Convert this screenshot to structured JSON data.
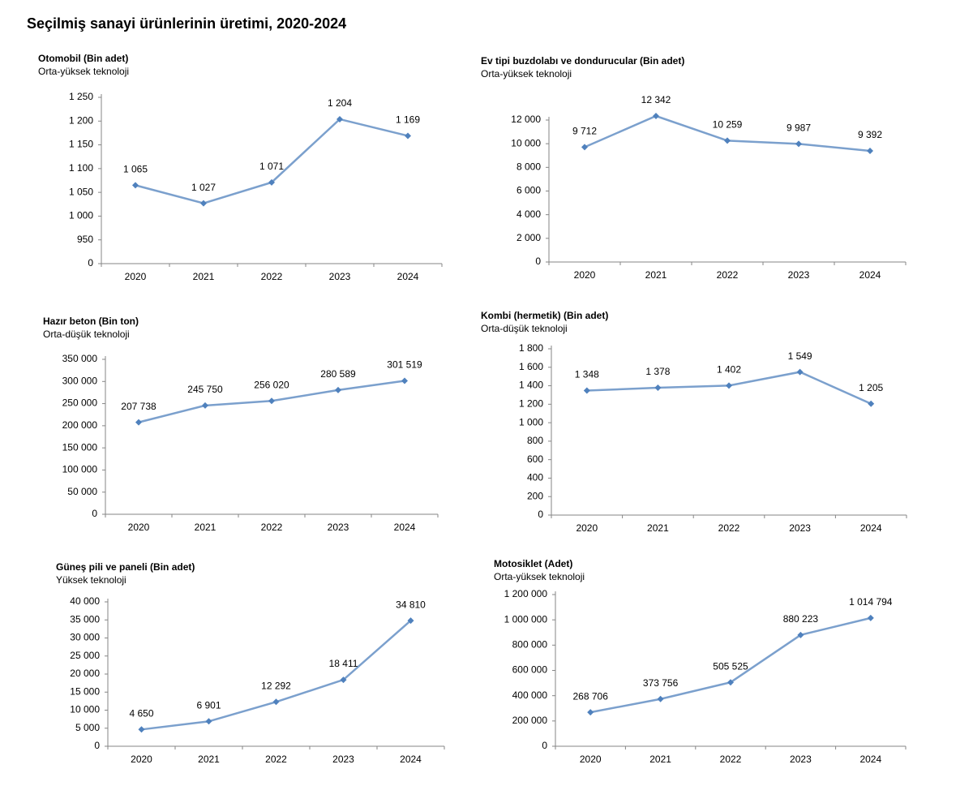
{
  "title": "Seçilmiş sanayi ürünlerinin üretimi, 2020-2024",
  "chart_data": [
    {
      "type": "line",
      "title": "Otomobil (Bin adet)",
      "subtitle": "Orta-yüksek teknoloji",
      "categories": [
        "2020",
        "2021",
        "2022",
        "2023",
        "2024"
      ],
      "values": [
        1065,
        1027,
        1071,
        1204,
        1169
      ],
      "value_labels": [
        "1 065",
        "1 027",
        "1 071",
        "1 204",
        "1 169"
      ],
      "color": "#7ba0cd",
      "marker_color": "#4f81bd",
      "ylim": [
        900,
        1250
      ],
      "yticks": [
        {
          "value": 900,
          "label": "0"
        },
        950,
        {
          "value": 1000,
          "label": "1 000"
        },
        {
          "value": 1050,
          "label": "1 050"
        },
        {
          "value": 1100,
          "label": "1 100"
        },
        {
          "value": 1150,
          "label": "1 150"
        },
        {
          "value": 1200,
          "label": "1 200"
        },
        {
          "value": 1250,
          "label": "1 250"
        }
      ]
    },
    {
      "type": "line",
      "title": "Ev tipi buzdolabı ve dondurucular (Bin adet)",
      "subtitle": "Orta-yüksek teknoloji",
      "categories": [
        "2020",
        "2021",
        "2022",
        "2023",
        "2024"
      ],
      "values": [
        9712,
        12342,
        10259,
        9987,
        9392
      ],
      "value_labels": [
        "9 712",
        "12 342",
        "10 259",
        "9 987",
        "9 392"
      ],
      "color": "#7ba0cd",
      "marker_color": "#4f81bd",
      "ylim": [
        0,
        12000
      ],
      "yticks": [
        0,
        {
          "value": 2000,
          "label": "2 000"
        },
        {
          "value": 4000,
          "label": "4 000"
        },
        {
          "value": 6000,
          "label": "6 000"
        },
        {
          "value": 8000,
          "label": "8 000"
        },
        {
          "value": 10000,
          "label": "10 000"
        },
        {
          "value": 12000,
          "label": "12 000"
        }
      ]
    },
    {
      "type": "line",
      "title": "Hazır beton (Bin ton)",
      "subtitle": "Orta-düşük teknoloji",
      "categories": [
        "2020",
        "2021",
        "2022",
        "2023",
        "2024"
      ],
      "values": [
        207738,
        245750,
        256020,
        280589,
        301519
      ],
      "value_labels": [
        "207 738",
        "245 750",
        "256 020",
        "280 589",
        "301 519"
      ],
      "color": "#7ba0cd",
      "marker_color": "#4f81bd",
      "ylim": [
        0,
        350000
      ],
      "yticks": [
        0,
        {
          "value": 50000,
          "label": "50 000"
        },
        {
          "value": 100000,
          "label": "100 000"
        },
        {
          "value": 150000,
          "label": "150 000"
        },
        {
          "value": 200000,
          "label": "200 000"
        },
        {
          "value": 250000,
          "label": "250 000"
        },
        {
          "value": 300000,
          "label": "300 000"
        },
        {
          "value": 350000,
          "label": "350 000"
        }
      ]
    },
    {
      "type": "line",
      "title": "Kombi (hermetik) (Bin adet)",
      "subtitle": "Orta-düşük teknoloji",
      "categories": [
        "2020",
        "2021",
        "2022",
        "2023",
        "2024"
      ],
      "values": [
        1348,
        1378,
        1402,
        1549,
        1205
      ],
      "value_labels": [
        "1 348",
        "1 378",
        "1 402",
        "1 549",
        "1 205"
      ],
      "color": "#7ba0cd",
      "marker_color": "#4f81bd",
      "ylim": [
        0,
        1800
      ],
      "yticks": [
        0,
        200,
        400,
        600,
        800,
        {
          "value": 1000,
          "label": "1 000"
        },
        {
          "value": 1200,
          "label": "1 200"
        },
        {
          "value": 1400,
          "label": "1 400"
        },
        {
          "value": 1600,
          "label": "1 600"
        },
        {
          "value": 1800,
          "label": "1 800"
        }
      ]
    },
    {
      "type": "line",
      "title": "Güneş pili ve paneli (Bin adet)",
      "subtitle": "Yüksek teknoloji",
      "categories": [
        "2020",
        "2021",
        "2022",
        "2023",
        "2024"
      ],
      "values": [
        4650,
        6901,
        12292,
        18411,
        34810
      ],
      "value_labels": [
        "4 650",
        "6 901",
        "12 292",
        "18 411",
        "34 810"
      ],
      "color": "#7ba0cd",
      "marker_color": "#4f81bd",
      "ylim": [
        0,
        40000
      ],
      "yticks": [
        0,
        {
          "value": 5000,
          "label": "5 000"
        },
        {
          "value": 10000,
          "label": "10 000"
        },
        {
          "value": 15000,
          "label": "15 000"
        },
        {
          "value": 20000,
          "label": "20 000"
        },
        {
          "value": 25000,
          "label": "25 000"
        },
        {
          "value": 30000,
          "label": "30 000"
        },
        {
          "value": 35000,
          "label": "35 000"
        },
        {
          "value": 40000,
          "label": "40 000"
        }
      ]
    },
    {
      "type": "line",
      "title": "Motosiklet (Adet)",
      "subtitle": "Orta-yüksek teknoloji",
      "categories": [
        "2020",
        "2021",
        "2022",
        "2023",
        "2024"
      ],
      "values": [
        268706,
        373756,
        505525,
        880223,
        1014794
      ],
      "value_labels": [
        "268 706",
        "373 756",
        "505 525",
        "880 223",
        "1 014 794"
      ],
      "color": "#7ba0cd",
      "marker_color": "#4f81bd",
      "ylim": [
        0,
        1200000
      ],
      "yticks": [
        0,
        {
          "value": 200000,
          "label": "200 000"
        },
        {
          "value": 400000,
          "label": "400 000"
        },
        {
          "value": 600000,
          "label": "600 000"
        },
        {
          "value": 800000,
          "label": "800 000"
        },
        {
          "value": 1000000,
          "label": "1 000 000"
        },
        {
          "value": 1200000,
          "label": "1 200 000"
        }
      ]
    }
  ]
}
